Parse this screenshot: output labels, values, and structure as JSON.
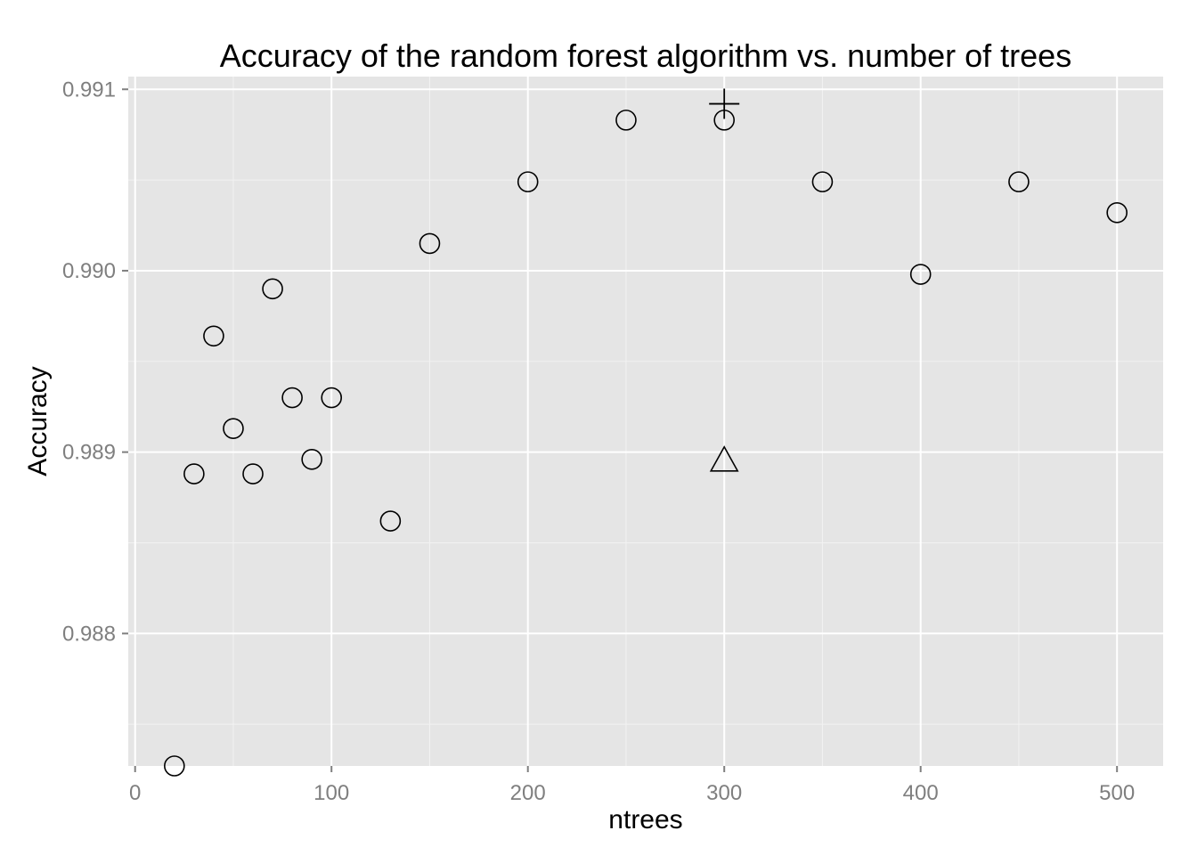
{
  "chart_data": {
    "type": "scatter",
    "title": "Accuracy of the random forest algorithm vs. number of trees",
    "xlabel": "ntrees",
    "ylabel": "Accuracy",
    "xlim": [
      -3.5,
      523.5
    ],
    "ylim": [
      0.98727,
      0.99107
    ],
    "x_ticks": [
      0,
      100,
      200,
      300,
      400,
      500
    ],
    "x_tick_labels": [
      "0",
      "100",
      "200",
      "300",
      "400",
      "500"
    ],
    "y_ticks": [
      0.988,
      0.989,
      0.99,
      0.991
    ],
    "y_tick_labels": [
      "0.988",
      "0.989",
      "0.990",
      "0.991"
    ],
    "grid": true,
    "background": "#e5e5e5",
    "grid_color": "#ffffff",
    "series": [
      {
        "marker": "circle",
        "x": [
          20,
          30,
          40,
          50,
          60,
          70,
          80,
          90,
          100,
          130,
          150,
          200,
          250,
          300,
          350,
          400,
          450,
          500
        ],
        "y": [
          0.98727,
          0.98888,
          0.98964,
          0.98913,
          0.98888,
          0.9899,
          0.9893,
          0.98896,
          0.9893,
          0.98862,
          0.99015,
          0.99049,
          0.99083,
          0.99083,
          0.99049,
          0.98998,
          0.99049,
          0.99032
        ]
      },
      {
        "marker": "plus",
        "x": [
          300
        ],
        "y": [
          0.99092
        ]
      },
      {
        "marker": "triangle",
        "x": [
          300
        ],
        "y": [
          0.98896
        ]
      }
    ]
  }
}
